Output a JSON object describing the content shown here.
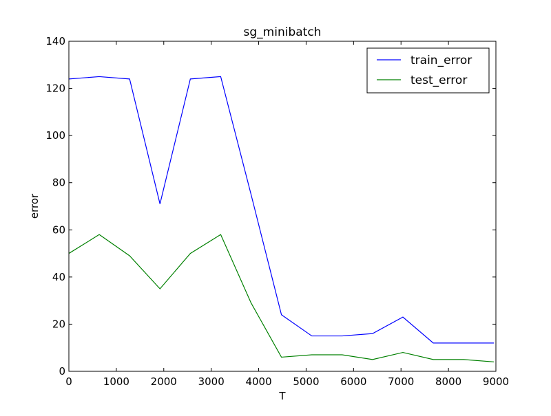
{
  "chart_data": {
    "type": "line",
    "title": "sg_minibatch",
    "xlabel": "T",
    "ylabel": "error",
    "xlim": [
      0,
      9000
    ],
    "ylim": [
      0,
      140
    ],
    "xticks": [
      0,
      1000,
      2000,
      3000,
      4000,
      5000,
      6000,
      7000,
      8000,
      9000
    ],
    "yticks": [
      0,
      20,
      40,
      60,
      80,
      100,
      120,
      140
    ],
    "x": [
      0,
      640,
      1280,
      1920,
      2560,
      3200,
      3840,
      4480,
      5120,
      5760,
      6400,
      7040,
      7680,
      8320,
      8960
    ],
    "series": [
      {
        "name": "train_error",
        "color": "#0000ff",
        "values": [
          124,
          125,
          124,
          71,
          124,
          125,
          75,
          24,
          15,
          15,
          16,
          23,
          12,
          12,
          12
        ]
      },
      {
        "name": "test_error",
        "color": "#008000",
        "values": [
          50,
          58,
          49,
          35,
          50,
          58,
          29,
          6,
          7,
          7,
          5,
          8,
          5,
          5,
          4
        ]
      }
    ],
    "legend_position": "top-right",
    "grid": false
  }
}
